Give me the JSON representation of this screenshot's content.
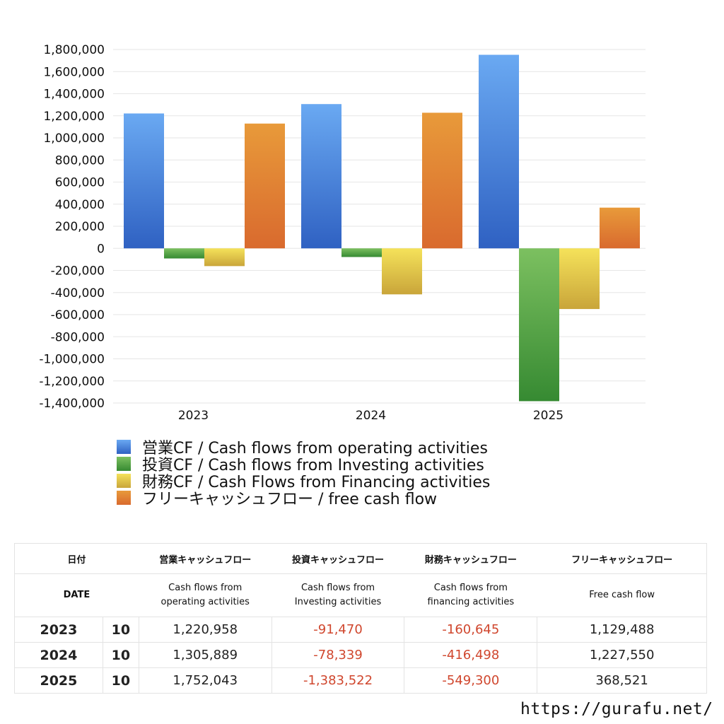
{
  "chart_data": {
    "type": "bar",
    "categories": [
      "2023",
      "2024",
      "2025"
    ],
    "series": [
      {
        "name": "営業CF / Cash flows from operating activities",
        "values": [
          1220958,
          1305889,
          1752043
        ],
        "color_top": "#6aa9f2",
        "color_bottom": "#2f61c2"
      },
      {
        "name": "投資CF / Cash flows from Investing activities",
        "values": [
          -91470,
          -78339,
          -1383522
        ],
        "color_top": "#7cc060",
        "color_bottom": "#368a32"
      },
      {
        "name": "財務CF / Cash Flows from Financing activities",
        "values": [
          -160645,
          -416498,
          -549300
        ],
        "color_top": "#f5e25a",
        "color_bottom": "#c9a53a"
      },
      {
        "name": "フリーキャッシュフロー / free cash flow",
        "values": [
          1129488,
          1227550,
          368521
        ],
        "color_top": "#e89a3a",
        "color_bottom": "#d96a2e"
      }
    ],
    "ylim": [
      -1400000,
      1800000
    ],
    "yticks": [
      1800000,
      1600000,
      1400000,
      1200000,
      1000000,
      800000,
      600000,
      400000,
      200000,
      0,
      -200000,
      -400000,
      -600000,
      -800000,
      -1000000,
      -1200000,
      -1400000
    ],
    "ytick_labels": [
      "1,800,000",
      "1,600,000",
      "1,400,000",
      "1,200,000",
      "1,000,000",
      "800,000",
      "600,000",
      "400,000",
      "200,000",
      "0",
      "-200,000",
      "-400,000",
      "-600,000",
      "-800,000",
      "-1,000,000",
      "-1,200,000",
      "-1,400,000"
    ],
    "grid": true,
    "legend_placement": "bottom-left",
    "title": "",
    "xlabel": "",
    "ylabel": ""
  },
  "table": {
    "headers": [
      "日付",
      "営業キャッシュフロー",
      "投資キャッシュフロー",
      "財務キャッシュフロー",
      "フリーキャッシュフロー"
    ],
    "subheaders": {
      "date": "DATE",
      "operating_1": "Cash flows from",
      "operating_2": "operating activities",
      "investing_1": "Cash flows from",
      "investing_2": "Investing activities",
      "financing_1": "Cash flows from",
      "financing_2": "financing activities",
      "free": "Free cash flow"
    },
    "rows": [
      {
        "year": "2023",
        "month": "10",
        "operating": "1,220,958",
        "investing": "-91,470",
        "financing": "-160,645",
        "free": "1,129,488"
      },
      {
        "year": "2024",
        "month": "10",
        "operating": "1,305,889",
        "investing": "-78,339",
        "financing": "-416,498",
        "free": "1,227,550"
      },
      {
        "year": "2025",
        "month": "10",
        "operating": "1,752,043",
        "investing": "-1,383,522",
        "financing": "-549,300",
        "free": "368,521"
      }
    ]
  },
  "source_url": "https://gurafu.net/"
}
